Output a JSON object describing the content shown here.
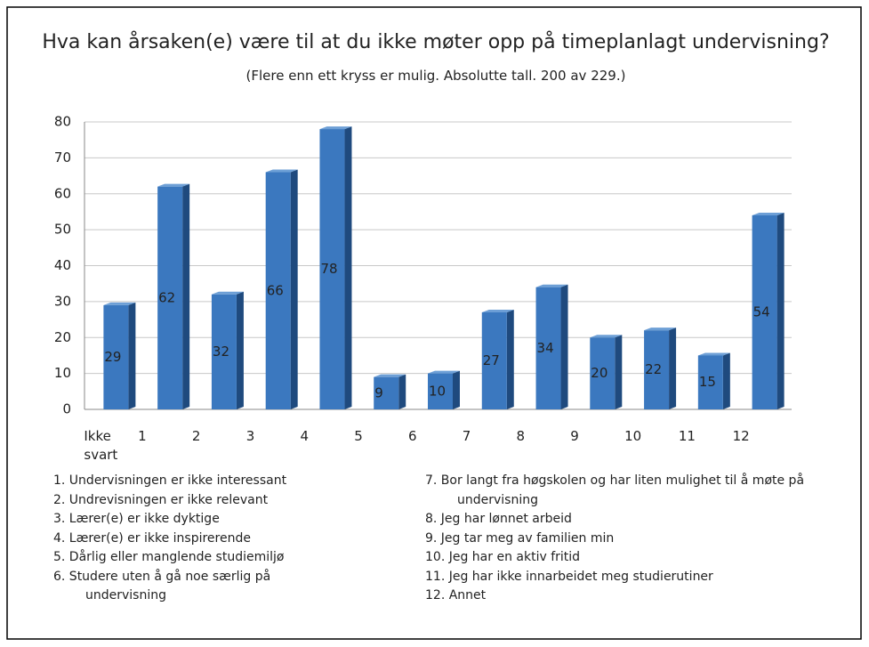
{
  "chart_data": {
    "type": "bar",
    "title": "Hva kan årsaken(e) være til at du ikke møter opp på timeplanlagt undervisning?",
    "subtitle": "(Flere enn ett kryss er mulig. Absolutte tall. 200 av 229.)",
    "categories": [
      "Ikke svart",
      "1",
      "2",
      "3",
      "4",
      "5",
      "6",
      "7",
      "8",
      "9",
      "10",
      "11",
      "12"
    ],
    "values": [
      29,
      62,
      32,
      66,
      78,
      9,
      10,
      27,
      34,
      20,
      22,
      15,
      54
    ],
    "color": "#3b78bf",
    "ylim": [
      0,
      80
    ],
    "yticks": [
      0,
      10,
      20,
      30,
      40,
      50,
      60,
      70,
      80
    ],
    "grid": true,
    "notes": [
      "1. Undervisningen er ikke interessant",
      "2. Undrevisningen er ikke relevant",
      "3. Lærer(e) er ikke dyktige",
      "4. Lærer(e) er ikke inspirerende",
      "5. Dårlig eller manglende studiemiljø",
      "6. Studere uten å gå noe særlig på undervisning",
      "7. Bor langt fra høgskolen og har liten mulighet til å møte på undervisning",
      "8. Jeg har lønnet arbeid",
      "9. Jeg tar meg av familien min",
      "10. Jeg har en aktiv fritid",
      "11. Jeg har ikke innarbeidet meg studierutiner",
      "12. Annet"
    ]
  }
}
